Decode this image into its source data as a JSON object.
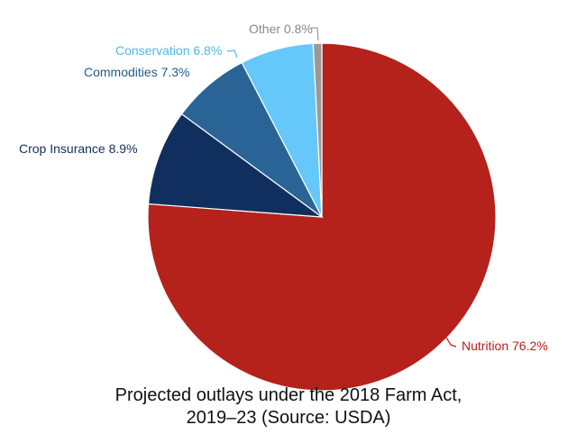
{
  "chart_data": {
    "type": "pie",
    "title_line1": "Projected outlays under the 2018 Farm Act,",
    "title_line2": "2019–23 (Source: USDA)",
    "slices": [
      {
        "name": "Nutrition",
        "value": 76.2,
        "label": "Nutrition 76.2%",
        "color": "#b5211b"
      },
      {
        "name": "Crop Insurance",
        "value": 8.9,
        "label": "Crop Insurance 8.9%",
        "color": "#112f5e"
      },
      {
        "name": "Commodities",
        "value": 7.3,
        "label": "Commodities 7.3%",
        "color": "#2a6496"
      },
      {
        "name": "Conservation",
        "value": 6.8,
        "label": "Conservation 6.8%",
        "color": "#66c7fa"
      },
      {
        "name": "Other",
        "value": 0.8,
        "label": "Other 0.8%",
        "color": "#999999"
      }
    ]
  }
}
